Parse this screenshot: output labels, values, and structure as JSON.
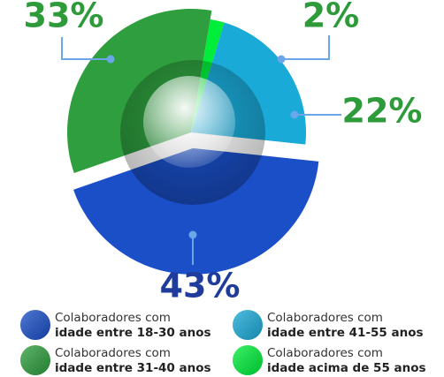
{
  "chart_data": {
    "type": "pie",
    "categories": [
      "idade entre 18-30 anos",
      "idade entre 31-40 anos",
      "idade acima de 55 anos",
      "idade entre 41-55 anos"
    ],
    "legend_prefix": "Colaboradores com",
    "values": [
      43,
      33,
      2,
      22
    ],
    "value_labels": [
      "43%",
      "33%",
      "2%",
      "22%"
    ],
    "colors": [
      "#1a4fc8",
      "#2e9e3e",
      "#00ee3a",
      "#1aaad8"
    ],
    "label_colors": [
      "#1f3c9c",
      "#2e9b3a",
      "#2e9b3a",
      "#2e9b3a"
    ]
  }
}
